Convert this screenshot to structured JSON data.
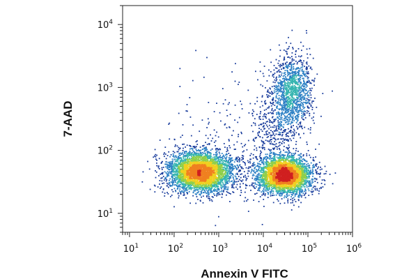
{
  "chart_data": {
    "type": "scatter",
    "subtype": "density-dot-plot",
    "title": "",
    "xlabel": "Annexin V FITC",
    "ylabel": "7-AAD",
    "x_scale": "log",
    "y_scale": "log",
    "xlim": [
      7,
      1000000
    ],
    "ylim": [
      5,
      20000
    ],
    "x_ticks": [
      {
        "value": 10,
        "base": "10",
        "exp": "1"
      },
      {
        "value": 100,
        "base": "10",
        "exp": "2"
      },
      {
        "value": 1000,
        "base": "10",
        "exp": "3"
      },
      {
        "value": 10000,
        "base": "10",
        "exp": "4"
      },
      {
        "value": 100000,
        "base": "10",
        "exp": "5"
      },
      {
        "value": 1000000,
        "base": "10",
        "exp": "6"
      }
    ],
    "y_ticks": [
      {
        "value": 10,
        "base": "10",
        "exp": "1"
      },
      {
        "value": 100,
        "base": "10",
        "exp": "2"
      },
      {
        "value": 1000,
        "base": "10",
        "exp": "3"
      },
      {
        "value": 10000,
        "base": "10",
        "exp": "4"
      }
    ],
    "grid": false,
    "legend": "none",
    "colormap": [
      "#1a3d9c",
      "#2a7fc4",
      "#36b5b0",
      "#8fcf4a",
      "#f0d020",
      "#f08020",
      "#d02020"
    ],
    "populations": [
      {
        "center_x": 400,
        "center_y": 45,
        "spread_x_decades": 0.38,
        "spread_y_decades": 0.16,
        "relative_count": 0.42
      },
      {
        "center_x": 30000,
        "center_y": 40,
        "spread_x_decades": 0.3,
        "spread_y_decades": 0.15,
        "relative_count": 0.38
      },
      {
        "center_x": 45000,
        "center_y": 900,
        "spread_x_decades": 0.22,
        "spread_y_decades": 0.28,
        "relative_count": 0.13
      },
      {
        "center_x": 20000,
        "center_y": 200,
        "spread_x_decades": 0.3,
        "spread_y_decades": 0.35,
        "relative_count": 0.05
      },
      {
        "center_x": 2000,
        "center_y": 150,
        "spread_x_decades": 0.7,
        "spread_y_decades": 0.6,
        "relative_count": 0.02
      }
    ]
  }
}
